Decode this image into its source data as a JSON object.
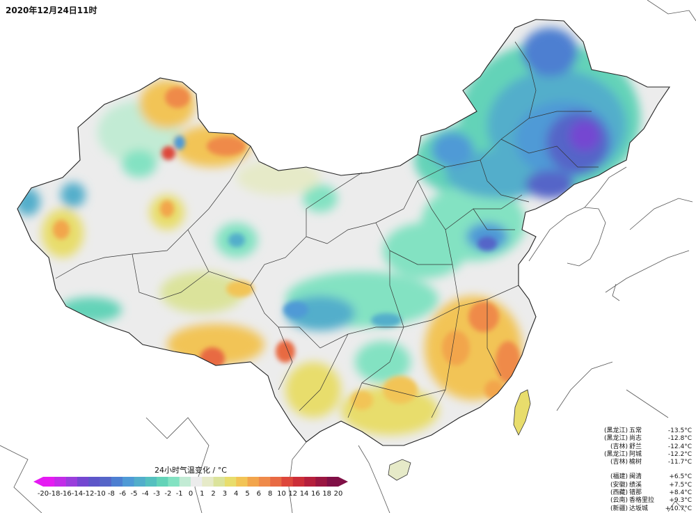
{
  "header": {
    "timestamp": "2020年12月24日11时"
  },
  "legend": {
    "title": "24小时气温变化 / °C",
    "ticks": [
      "-20",
      "-18",
      "-16",
      "-14",
      "-12",
      "-10",
      "-8",
      "-6",
      "-5",
      "-4",
      "-3",
      "-2",
      "-1",
      "0",
      "1",
      "2",
      "3",
      "4",
      "5",
      "6",
      "8",
      "10",
      "12",
      "14",
      "16",
      "18",
      "20"
    ],
    "colors": [
      "#e51bf2",
      "#c22ce8",
      "#9a3edc",
      "#7447d1",
      "#5d56c9",
      "#5565c8",
      "#4d7fd1",
      "#4f9ad6",
      "#52aecb",
      "#55c0bf",
      "#63d3b8",
      "#83e2c2",
      "#c2ebd4",
      "#ececec",
      "#e6eac8",
      "#dbe39b",
      "#e8dd6c",
      "#f2c456",
      "#f2a54c",
      "#ef8a4a",
      "#e86a43",
      "#dd473b",
      "#cc2e38",
      "#b51f3c",
      "#9a1641",
      "#801046"
    ]
  },
  "stations_cold": [
    {
      "prov": "(黑龙江)",
      "name": "五常",
      "value": "-13.5°C"
    },
    {
      "prov": "(黑龙江)",
      "name": "尚志",
      "value": "-12.8°C"
    },
    {
      "prov": "(吉林)",
      "name": "舒兰",
      "value": "-12.4°C"
    },
    {
      "prov": "(黑龙江)",
      "name": "阿城",
      "value": "-12.2°C"
    },
    {
      "prov": "(吉林)",
      "name": "榆树",
      "value": "-11.7°C"
    }
  ],
  "stations_warm": [
    {
      "prov": "(福建)",
      "name": "闽清",
      "value": "+6.5°C"
    },
    {
      "prov": "(安徽)",
      "name": "绩溪",
      "value": "+7.5°C"
    },
    {
      "prov": "(西藏)",
      "name": "错那",
      "value": "+8.4°C"
    },
    {
      "prov": "(云南)",
      "name": "香格里拉",
      "value": "+9.3°C"
    },
    {
      "prov": "(新疆)",
      "name": "达坂城",
      "value": "+10.7°C"
    }
  ]
}
